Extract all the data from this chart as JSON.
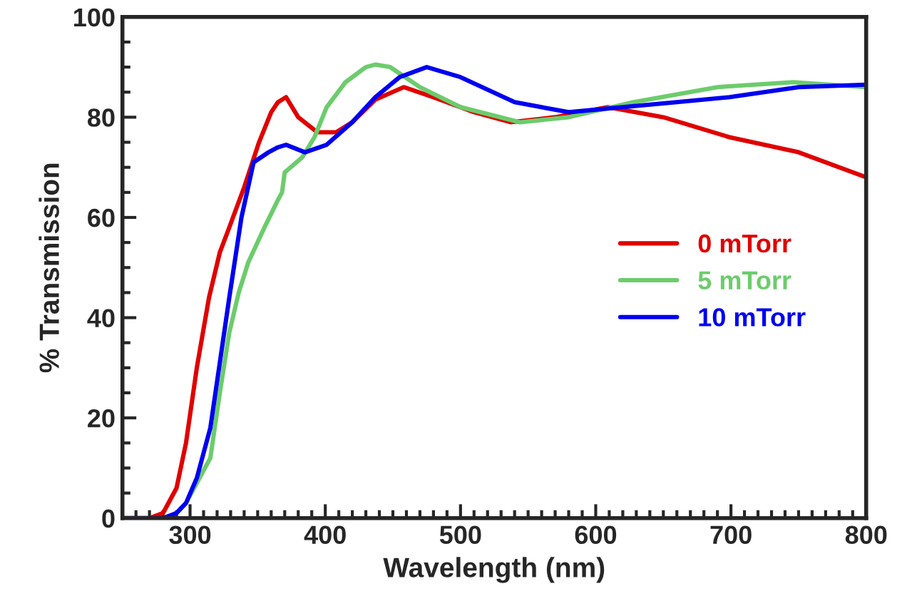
{
  "chart_data": {
    "type": "line",
    "xlabel": "Wavelength (nm)",
    "ylabel": "% Transmission",
    "xlim": [
      250,
      800
    ],
    "ylim": [
      0,
      100
    ],
    "xticks": [
      300,
      400,
      500,
      600,
      700,
      800
    ],
    "yticks": [
      0,
      20,
      40,
      60,
      80,
      100
    ],
    "grid": false,
    "legend": "right",
    "marker": "none",
    "line_style": "solid",
    "series": [
      {
        "name": "0 mTorr",
        "color": "#e00000",
        "x": [
          250,
          270,
          280,
          290,
          297,
          305,
          314,
          322,
          329,
          340,
          351,
          360,
          365,
          371,
          380,
          394,
          408,
          420,
          437,
          458,
          480,
          510,
          537,
          570,
          609,
          650,
          699,
          750,
          800
        ],
        "values": [
          0,
          0,
          1,
          6,
          15,
          30,
          44,
          53,
          58,
          66,
          75,
          81,
          83,
          84,
          80,
          77,
          77,
          79,
          83.5,
          86,
          84,
          81,
          79,
          80,
          82,
          80,
          76,
          73,
          68
        ]
      },
      {
        "name": "5 mTorr",
        "color": "#6ccc6c",
        "x": [
          290,
          297,
          305,
          315,
          322,
          329,
          336,
          343,
          355,
          365,
          368,
          370,
          383,
          392,
          401,
          415,
          430,
          437,
          448,
          470,
          500,
          544,
          580,
          628,
          690,
          746,
          800
        ],
        "values": [
          1,
          3,
          7,
          12,
          25,
          37,
          45,
          51,
          58,
          63.5,
          65,
          69,
          72,
          76,
          82,
          87,
          90,
          90.5,
          90,
          86,
          82,
          79,
          80,
          83,
          86,
          87,
          86
        ]
      },
      {
        "name": "10 mTorr",
        "color": "#0000f0",
        "x": [
          250,
          280,
          290,
          297,
          305,
          315,
          322,
          329,
          338,
          347,
          358,
          365,
          371,
          385,
          401,
          420,
          437,
          455,
          475,
          500,
          540,
          580,
          620,
          660,
          699,
          750,
          800
        ],
        "values": [
          0,
          0,
          1,
          3,
          8,
          18,
          31,
          44,
          60,
          71,
          73,
          74,
          74.5,
          73,
          74.5,
          79,
          84,
          88,
          90,
          88,
          83,
          81,
          82,
          83,
          84,
          86,
          86.5
        ]
      }
    ]
  }
}
